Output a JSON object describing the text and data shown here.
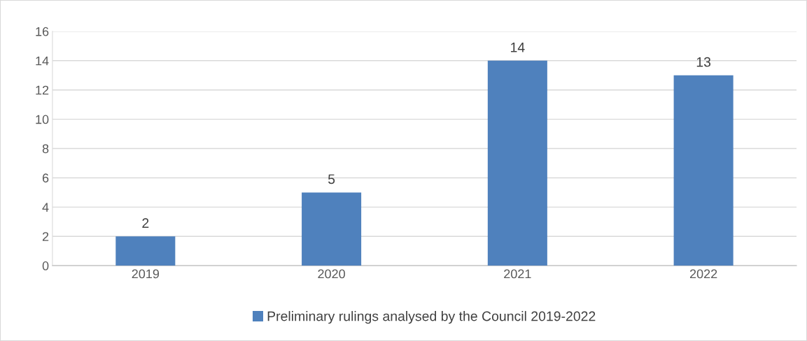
{
  "chart_data": {
    "type": "bar",
    "categories": [
      "2019",
      "2020",
      "2021",
      "2022"
    ],
    "series": [
      {
        "name": "Preliminary rulings analysed by the Council 2019-2022",
        "color": "#4f81bd",
        "values": [
          2,
          5,
          14,
          13
        ]
      }
    ],
    "ylim": [
      0,
      16
    ],
    "yticks": [
      0,
      2,
      4,
      6,
      8,
      10,
      12,
      14,
      16
    ],
    "grid": "y",
    "legend": "bottom",
    "data_labels": true
  }
}
